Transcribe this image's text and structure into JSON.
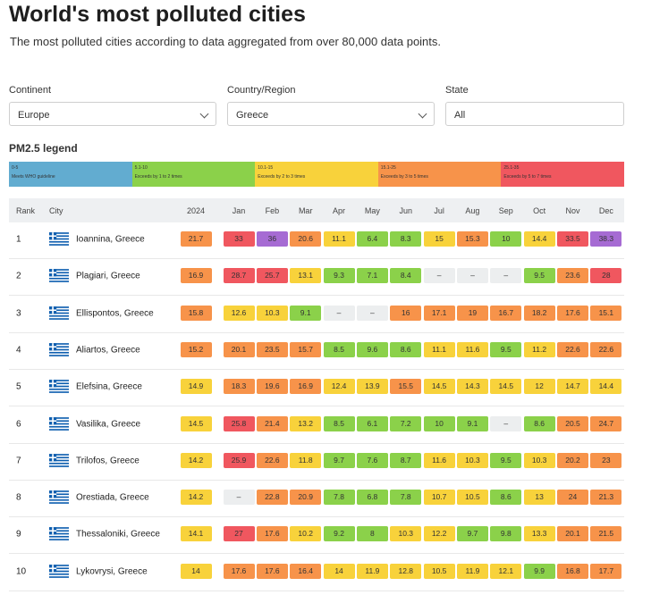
{
  "header": {
    "title": "World's most polluted cities",
    "subtitle": "The most polluted cities according to data aggregated from over 80,000 data points."
  },
  "filters": [
    {
      "label": "Continent",
      "value": "Europe"
    },
    {
      "label": "Country/Region",
      "value": "Greece"
    },
    {
      "label": "State",
      "value": "All"
    }
  ],
  "legend": {
    "title": "PM2.5 legend",
    "items": [
      {
        "range": "0-5",
        "description": "Meets WHO guideline",
        "color": "#62acd0"
      },
      {
        "range": "5.1-10",
        "description": "Exceeds by 1 to 2 times",
        "color": "#8bd14a"
      },
      {
        "range": "10.1-15",
        "description": "Exceeds by 2 to 3 times",
        "color": "#f8d23b"
      },
      {
        "range": "15.1-25",
        "description": "Exceeds by 3 to 5 times",
        "color": "#f7934a"
      },
      {
        "range": "25.1-35",
        "description": "Exceeds by 5 to 7 times",
        "color": "#f0575f"
      }
    ]
  },
  "table": {
    "columns": [
      "Rank",
      "City",
      "2024",
      "Jan",
      "Feb",
      "Mar",
      "Apr",
      "May",
      "Jun",
      "Jul",
      "Aug",
      "Sep",
      "Oct",
      "Nov",
      "Dec"
    ],
    "rows": [
      {
        "rank": 1,
        "city": "Ioannina, Greece",
        "values": [
          21.7,
          33,
          36,
          20.6,
          11.1,
          6.4,
          8.3,
          15,
          15.3,
          10,
          14.4,
          33.5,
          38.3
        ]
      },
      {
        "rank": 2,
        "city": "Plagiari, Greece",
        "values": [
          16.9,
          28.7,
          25.7,
          13.1,
          9.3,
          7.1,
          8.4,
          "–",
          "–",
          "–",
          9.5,
          23.6,
          28
        ]
      },
      {
        "rank": 3,
        "city": "Ellispontos, Greece",
        "values": [
          15.8,
          12.6,
          10.3,
          9.1,
          "–",
          "–",
          16,
          17.1,
          19,
          16.7,
          18.2,
          17.6,
          15.1
        ]
      },
      {
        "rank": 4,
        "city": "Aliartos, Greece",
        "values": [
          15.2,
          20.1,
          23.5,
          15.7,
          8.5,
          9.6,
          8.6,
          11.1,
          11.6,
          9.5,
          11.2,
          22.6,
          22.6
        ]
      },
      {
        "rank": 5,
        "city": "Elefsina, Greece",
        "values": [
          14.9,
          18.3,
          19.6,
          16.9,
          12.4,
          13.9,
          15.5,
          14.5,
          14.3,
          14.5,
          12,
          14.7,
          14.4
        ]
      },
      {
        "rank": 6,
        "city": "Vasilika, Greece",
        "values": [
          14.5,
          25.8,
          21.4,
          13.2,
          8.5,
          6.1,
          7.2,
          10,
          9.1,
          "–",
          8.6,
          20.5,
          24.7
        ]
      },
      {
        "rank": 7,
        "city": "Trilofos, Greece",
        "values": [
          14.2,
          25.9,
          22.6,
          11.8,
          9.7,
          7.6,
          8.7,
          11.6,
          10.3,
          9.5,
          10.3,
          20.2,
          23
        ]
      },
      {
        "rank": 8,
        "city": "Orestiada, Greece",
        "values": [
          14.2,
          "–",
          22.8,
          20.9,
          7.8,
          6.8,
          7.8,
          10.7,
          10.5,
          8.6,
          13,
          24,
          21.3
        ]
      },
      {
        "rank": 9,
        "city": "Thessaloniki, Greece",
        "values": [
          14.1,
          27,
          17.6,
          10.2,
          9.2,
          8,
          10.3,
          12.2,
          9.7,
          9.8,
          13.3,
          20.1,
          21.5
        ]
      },
      {
        "rank": 10,
        "city": "Lykovrysi, Greece",
        "values": [
          14,
          17.6,
          17.6,
          16.4,
          14,
          11.9,
          12.8,
          10.5,
          11.9,
          12.1,
          9.9,
          16.8,
          17.7
        ]
      }
    ]
  }
}
